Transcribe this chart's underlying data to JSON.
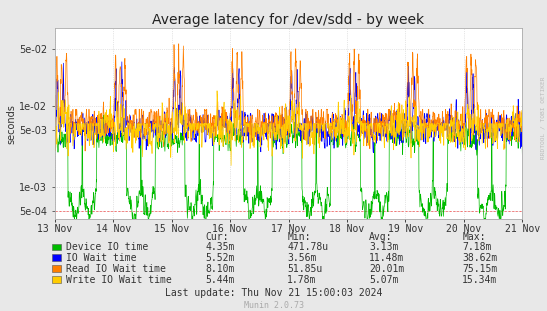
{
  "title": "Average latency for /dev/sdd - by week",
  "ylabel": "seconds",
  "watermark": "RRDTOOL / TOBI OETIKER",
  "munin_version": "Munin 2.0.73",
  "last_update": "Last update: Thu Nov 21 15:00:03 2024",
  "x_tick_labels": [
    "13 Nov",
    "14 Nov",
    "15 Nov",
    "16 Nov",
    "17 Nov",
    "18 Nov",
    "19 Nov",
    "20 Nov",
    "21 Nov"
  ],
  "ylim_min": 0.0004,
  "ylim_max": 0.09,
  "yticks": [
    0.0005,
    0.001,
    0.005,
    0.01,
    0.05
  ],
  "ytick_labels": [
    "5e-04",
    "1e-03",
    "5e-03",
    "1e-02",
    "5e-02"
  ],
  "legend_entries": [
    {
      "label": "Device IO time",
      "color": "#00bb00"
    },
    {
      "label": "IO Wait time",
      "color": "#0000ff"
    },
    {
      "label": "Read IO Wait time",
      "color": "#ff7f00"
    },
    {
      "label": "Write IO Wait time",
      "color": "#ffcc00"
    }
  ],
  "table_headers": [
    "Cur:",
    "Min:",
    "Avg:",
    "Max:"
  ],
  "table_data": [
    [
      "4.35m",
      "471.78u",
      "3.13m",
      "7.18m"
    ],
    [
      "5.52m",
      "3.56m",
      "11.48m",
      "38.62m"
    ],
    [
      "8.10m",
      "51.85u",
      "20.01m",
      "75.15m"
    ],
    [
      "5.44m",
      "1.78m",
      "5.07m",
      "15.34m"
    ]
  ],
  "bg_color": "#e8e8e8",
  "plot_bg_color": "#ffffff",
  "grid_color": "#cccccc",
  "border_color": "#aaaaaa",
  "title_fontsize": 10,
  "axis_fontsize": 7,
  "legend_fontsize": 7,
  "table_fontsize": 7,
  "seed": 42,
  "n_points": 2000,
  "n_days": 8,
  "line_colors": [
    "#00bb00",
    "#0000ff",
    "#ff7f00",
    "#ffcc00"
  ],
  "line_width": 0.5
}
